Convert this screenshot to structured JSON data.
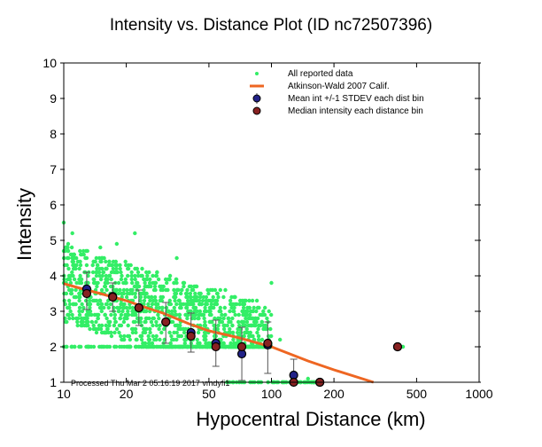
{
  "chart_data": {
    "type": "scatter",
    "title": "Intensity vs. Distance Plot (ID nc72507396)",
    "xlabel": "Hypocentral Distance (km)",
    "ylabel": "Intensity",
    "xscale": "log",
    "xlim": [
      10,
      1000
    ],
    "ylim": [
      1,
      10
    ],
    "xticks": [
      "10",
      "20",
      "50",
      "100",
      "200",
      "500",
      "1000"
    ],
    "xtick_values": [
      10,
      20,
      50,
      100,
      200,
      500,
      1000
    ],
    "yticks": [
      "1",
      "2",
      "3",
      "4",
      "5",
      "6",
      "7",
      "8",
      "9",
      "10"
    ],
    "ytick_values": [
      1,
      2,
      3,
      4,
      5,
      6,
      7,
      8,
      9,
      10
    ],
    "legend_position": "top-right",
    "legend": [
      {
        "label": "All reported data",
        "marker": "green-dot"
      },
      {
        "label": "Atkinson-Wald 2007 Calif.",
        "marker": "orange-line"
      },
      {
        "label": "Mean int +/-1 STDEV each dist bin",
        "marker": "blue-circle-errorbar"
      },
      {
        "label": "Median intensity each distance bin",
        "marker": "red-circle"
      }
    ],
    "colors": {
      "data": "#33ee66",
      "model": "#ee6622",
      "mean": "#222288",
      "median": "#882222",
      "errorbar": "#555555"
    },
    "model_curve": {
      "x": [
        10,
        12,
        15,
        20,
        25,
        30,
        40,
        50,
        70,
        100,
        150,
        200,
        310
      ],
      "y": [
        3.78,
        3.65,
        3.5,
        3.3,
        3.1,
        2.95,
        2.65,
        2.45,
        2.25,
        2.0,
        1.6,
        1.35,
        1.0
      ]
    },
    "mean_bins": [
      {
        "x": 12.9,
        "y": 3.63,
        "lo": 3.05,
        "hi": 4.1
      },
      {
        "x": 17.2,
        "y": 3.42,
        "lo": 3.0,
        "hi": 3.8
      },
      {
        "x": 23,
        "y": 3.1,
        "lo": 2.6,
        "hi": 3.6
      },
      {
        "x": 31,
        "y": 2.7,
        "lo": 2.1,
        "hi": 3.25
      },
      {
        "x": 41,
        "y": 2.4,
        "lo": 1.85,
        "hi": 2.95
      },
      {
        "x": 54,
        "y": 2.1,
        "lo": 1.45,
        "hi": 2.75
      },
      {
        "x": 72,
        "y": 1.8,
        "lo": 1.05,
        "hi": 2.55
      },
      {
        "x": 96,
        "y": 2.05,
        "lo": 1.25,
        "hi": 2.7
      },
      {
        "x": 128,
        "y": 1.2,
        "lo": 1.0,
        "hi": 1.65
      },
      {
        "x": 171,
        "y": 1.0,
        "lo": 1.0,
        "hi": 1.0
      },
      {
        "x": 405,
        "y": 2.0,
        "lo": 2.0,
        "hi": 2.0
      }
    ],
    "median_bins": [
      {
        "x": 12.9,
        "y": 3.5
      },
      {
        "x": 17.2,
        "y": 3.4
      },
      {
        "x": 23,
        "y": 3.1
      },
      {
        "x": 31,
        "y": 2.7
      },
      {
        "x": 41,
        "y": 2.3
      },
      {
        "x": 54,
        "y": 2.0
      },
      {
        "x": 72,
        "y": 2.0
      },
      {
        "x": 96,
        "y": 2.1
      },
      {
        "x": 128,
        "y": 1.0
      },
      {
        "x": 171,
        "y": 1.0
      },
      {
        "x": 405,
        "y": 2.0
      }
    ],
    "scatter_sample": {
      "x": [
        10,
        10.5,
        11,
        12,
        13,
        14,
        15,
        16,
        18,
        20,
        22,
        25,
        28,
        30,
        35,
        40,
        45,
        50,
        60,
        70,
        80,
        90,
        100,
        110,
        130,
        150,
        170,
        430
      ],
      "y": [
        5.5,
        4.9,
        5.2,
        4.4,
        4.7,
        3.9,
        4.8,
        4.2,
        4.9,
        3.8,
        5.2,
        3.7,
        4.0,
        3.4,
        4.5,
        3.2,
        3.3,
        3.0,
        3.6,
        2.6,
        2.6,
        2.7,
        3.8,
        2.2,
        1.0,
        1.1,
        1.0,
        2.0
      ]
    },
    "footer_note": "Processed Thu Mar  2 05:16:19 2017 vmdyfi1"
  }
}
